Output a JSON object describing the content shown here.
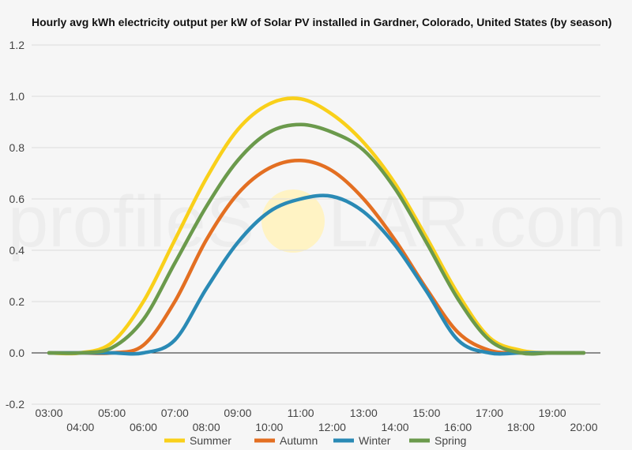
{
  "watermark": {
    "part1": "profileS",
    "part2": "LAR.com"
  },
  "colors": {
    "grid": "#dcdcdc",
    "zero": "#222222",
    "sun": "#fff3c4"
  },
  "chart_data": {
    "type": "line",
    "title": "Hourly avg kWh electricity output per kW of Solar PV installed in Gardner, Colorado, United States (by season)",
    "xlabel": "",
    "ylabel": "",
    "categories": [
      "03:00",
      "04:00",
      "05:00",
      "06:00",
      "07:00",
      "08:00",
      "09:00",
      "10:00",
      "11:00",
      "12:00",
      "13:00",
      "14:00",
      "15:00",
      "16:00",
      "17:00",
      "18:00",
      "19:00",
      "20:00"
    ],
    "ylim": [
      -0.2,
      1.2
    ],
    "yticks": [
      "-0.2",
      "0.0",
      "0.2",
      "0.4",
      "0.6",
      "0.8",
      "1.0",
      "1.2"
    ],
    "yticks_values": [
      -0.2,
      0.0,
      0.2,
      0.4,
      0.6,
      0.8,
      1.0,
      1.2
    ],
    "grid": true,
    "legend": "bottom",
    "series": [
      {
        "name": "Summer",
        "color": "#f9d01a",
        "values": [
          0.0,
          0.0,
          0.04,
          0.2,
          0.44,
          0.68,
          0.87,
          0.97,
          0.99,
          0.93,
          0.82,
          0.66,
          0.45,
          0.23,
          0.06,
          0.01,
          0.0,
          0.0
        ]
      },
      {
        "name": "Autumn",
        "color": "#e36f22",
        "values": [
          0.0,
          0.0,
          0.0,
          0.03,
          0.2,
          0.44,
          0.62,
          0.72,
          0.75,
          0.71,
          0.6,
          0.44,
          0.25,
          0.08,
          0.01,
          0.0,
          0.0,
          0.0
        ]
      },
      {
        "name": "Winter",
        "color": "#2a8ab5",
        "values": [
          0.0,
          0.0,
          0.0,
          0.0,
          0.05,
          0.25,
          0.43,
          0.55,
          0.6,
          0.61,
          0.55,
          0.42,
          0.24,
          0.05,
          0.0,
          0.0,
          0.0,
          0.0
        ]
      },
      {
        "name": "Spring",
        "color": "#6b9a4c",
        "values": [
          0.0,
          0.0,
          0.02,
          0.13,
          0.35,
          0.57,
          0.75,
          0.86,
          0.89,
          0.86,
          0.79,
          0.64,
          0.43,
          0.21,
          0.05,
          0.0,
          0.0,
          0.0
        ]
      }
    ]
  }
}
